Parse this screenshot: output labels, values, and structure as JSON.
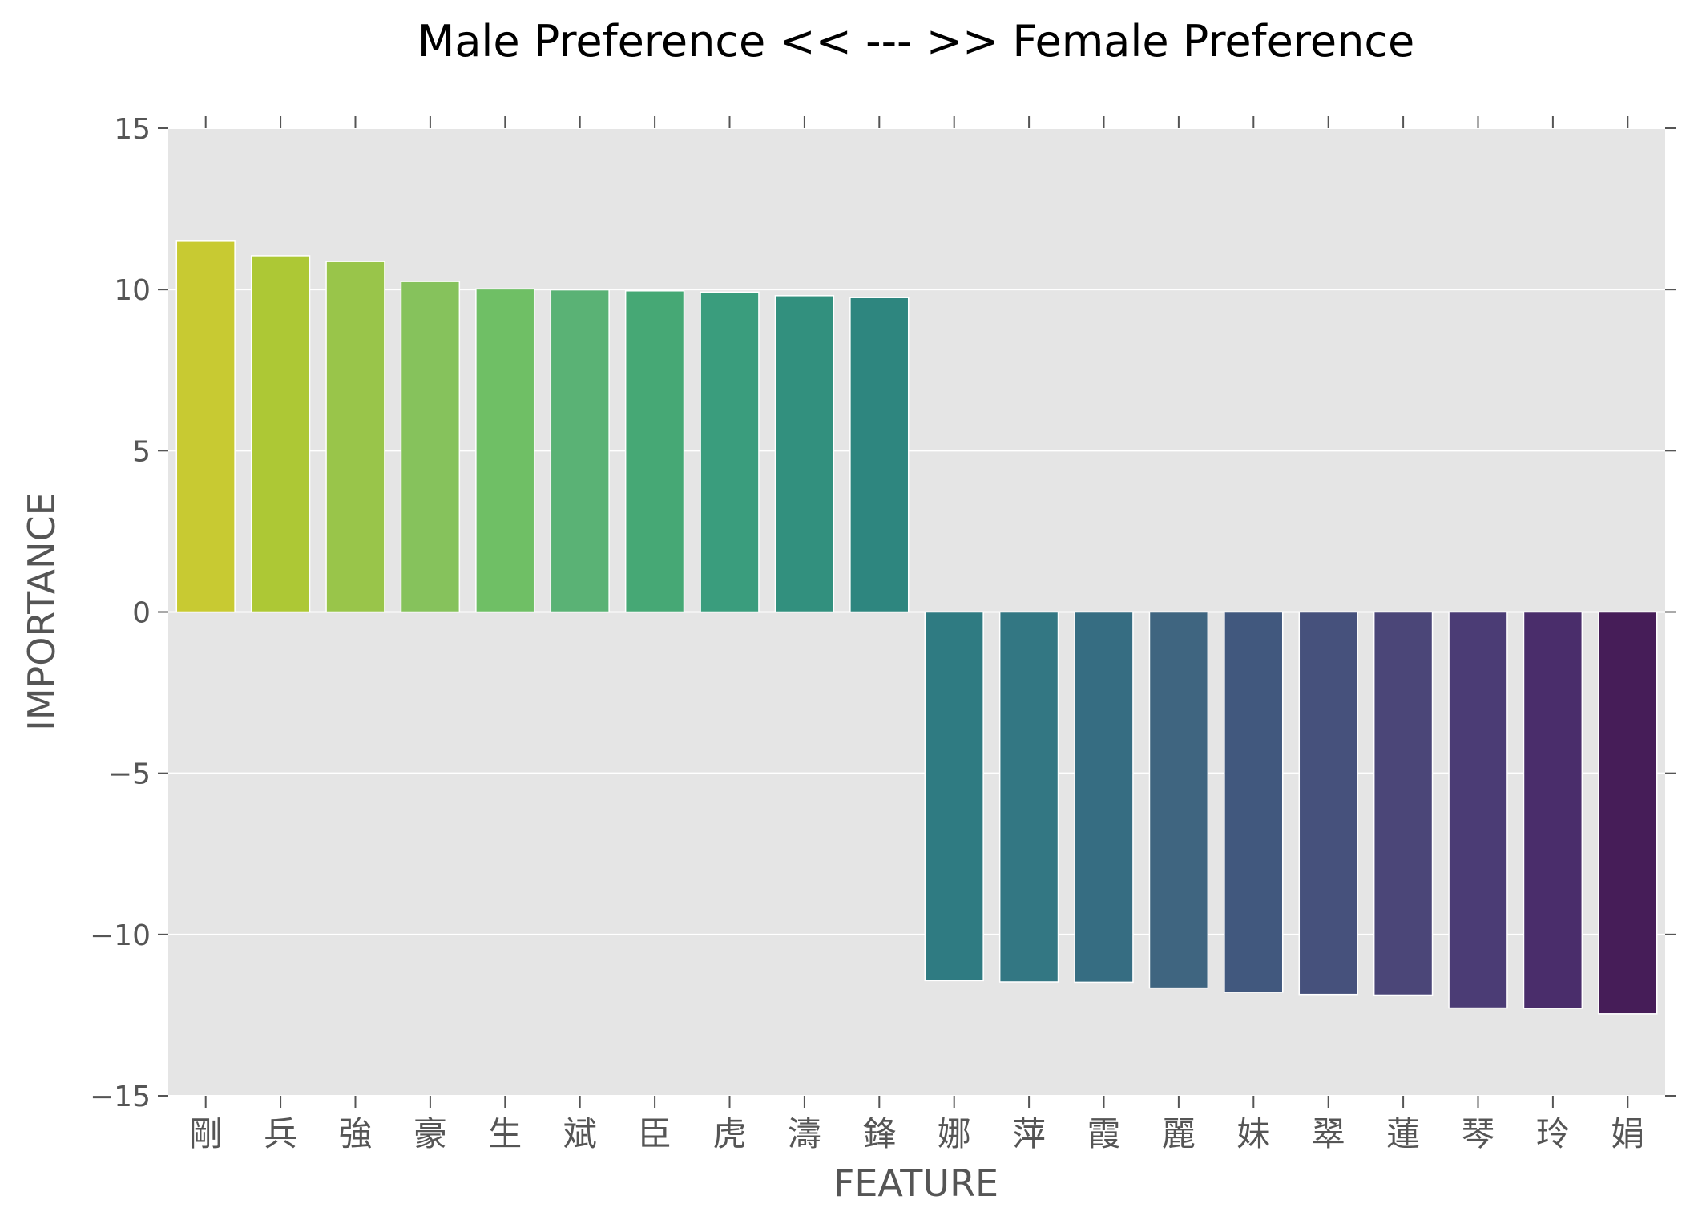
{
  "chart_data": {
    "type": "bar",
    "title": "Male Preference << --- >> Female Preference",
    "xlabel": "FEATURE",
    "ylabel": "IMPORTANCE",
    "ylim": [
      -15,
      15
    ],
    "yticks": [
      15,
      10,
      5,
      0,
      -5,
      -10,
      -15
    ],
    "ytick_labels": [
      "15",
      "10",
      "5",
      "0",
      "−5",
      "−10",
      "−15"
    ],
    "grid": true,
    "categories": [
      "剛",
      "兵",
      "強",
      "豪",
      "生",
      "斌",
      "臣",
      "虎",
      "濤",
      "鋒",
      "娜",
      "萍",
      "霞",
      "麗",
      "妹",
      "翠",
      "蓮",
      "琴",
      "玲",
      "娟"
    ],
    "values": [
      11.5,
      11.05,
      10.87,
      10.25,
      10.02,
      9.99,
      9.96,
      9.92,
      9.81,
      9.75,
      -11.43,
      -11.47,
      -11.48,
      -11.66,
      -11.79,
      -11.86,
      -11.88,
      -12.28,
      -12.29,
      -12.46
    ],
    "colors": [
      "#c8ca32",
      "#adc835",
      "#99c54a",
      "#86c25c",
      "#6fbf65",
      "#5ab275",
      "#46a875",
      "#3a9d7d",
      "#32907e",
      "#2e867f",
      "#2f7b82",
      "#337783",
      "#366d82",
      "#3f6580",
      "#41587e",
      "#46517c",
      "#4b4678",
      "#4b3c75",
      "#4a2d6b",
      "#461d58"
    ]
  }
}
